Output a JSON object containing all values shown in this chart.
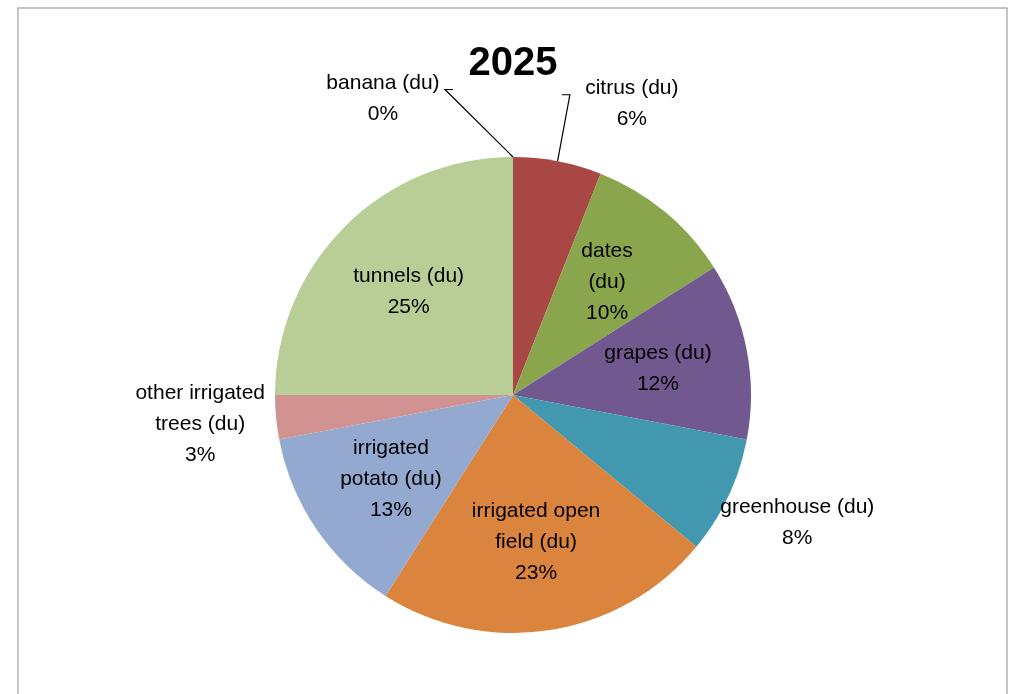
{
  "chart_data": {
    "type": "pie",
    "title": "2025",
    "categories": [
      "banana (du)",
      "citrus (du)",
      "dates (du)",
      "grapes (du)",
      "greenhouse (du)",
      "irrigated open field (du)",
      "irrigated potato (du)",
      "other irrigated trees (du)",
      "tunnels (du)"
    ],
    "values": [
      0,
      6,
      10,
      12,
      8,
      23,
      13,
      3,
      25
    ],
    "colors": [
      "#4572a7",
      "#a94744",
      "#8aa64c",
      "#71588f",
      "#4198af",
      "#db843d",
      "#93a9cf",
      "#d19392",
      "#b9cd96"
    ],
    "value_labels": [
      "0%",
      "6%",
      "10%",
      "12%",
      "8%",
      "23%",
      "13%",
      "3%",
      "25%"
    ]
  }
}
